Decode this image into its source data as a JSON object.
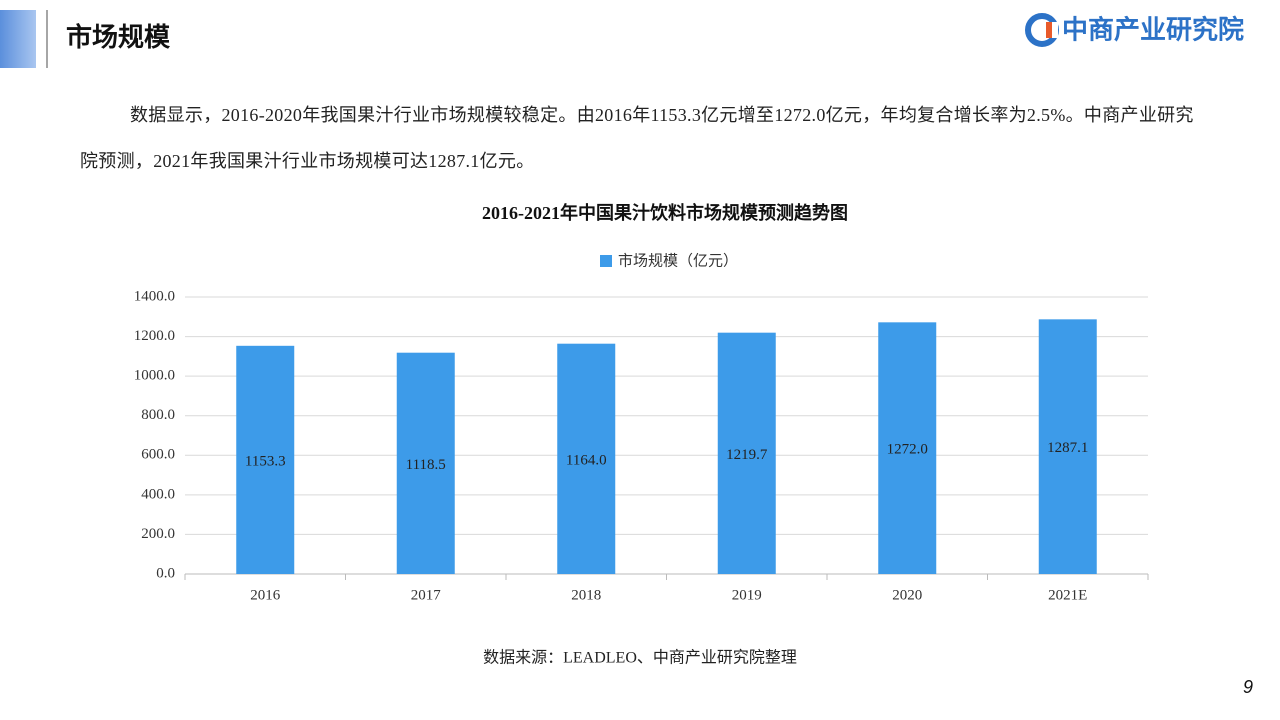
{
  "header": {
    "title": "市场规模",
    "logo": "中商产业研究院"
  },
  "paragraph": "数据显示，2016-2020年我国果汁行业市场规模较稳定。由2016年1153.3亿元增至1272.0亿元，年均复合增长率为2.5%。中商产业研究院预测，2021年我国果汁行业市场规模可达1287.1亿元。",
  "chart_data": {
    "type": "bar",
    "title": "2016-2021年中国果汁饮料市场规模预测趋势图",
    "categories": [
      "2016",
      "2017",
      "2018",
      "2019",
      "2020",
      "2021E"
    ],
    "series": [
      {
        "name": "市场规模（亿元）",
        "color": "#3d9be9",
        "values": [
          1153.3,
          1118.5,
          1164.0,
          1219.7,
          1272.0,
          1287.1
        ],
        "value_labels": [
          "1153.3",
          "1118.5",
          "1164.0",
          "1219.7",
          "1272.0",
          "1287.1"
        ]
      }
    ],
    "ylim": [
      0,
      1400
    ],
    "yticks": [
      {
        "value": 0,
        "label": "0.0"
      },
      {
        "value": 200,
        "label": "200.0"
      },
      {
        "value": 400,
        "label": "400.0"
      },
      {
        "value": 600,
        "label": "600.0"
      },
      {
        "value": 800,
        "label": "800.0"
      },
      {
        "value": 1000,
        "label": "1000.0"
      },
      {
        "value": 1200,
        "label": "1200.0"
      },
      {
        "value": 1400,
        "label": "1400.0"
      }
    ],
    "grid": true,
    "legend": "top"
  },
  "source": "数据来源：LEADLEO、中商产业研究院整理",
  "page_number": "9"
}
